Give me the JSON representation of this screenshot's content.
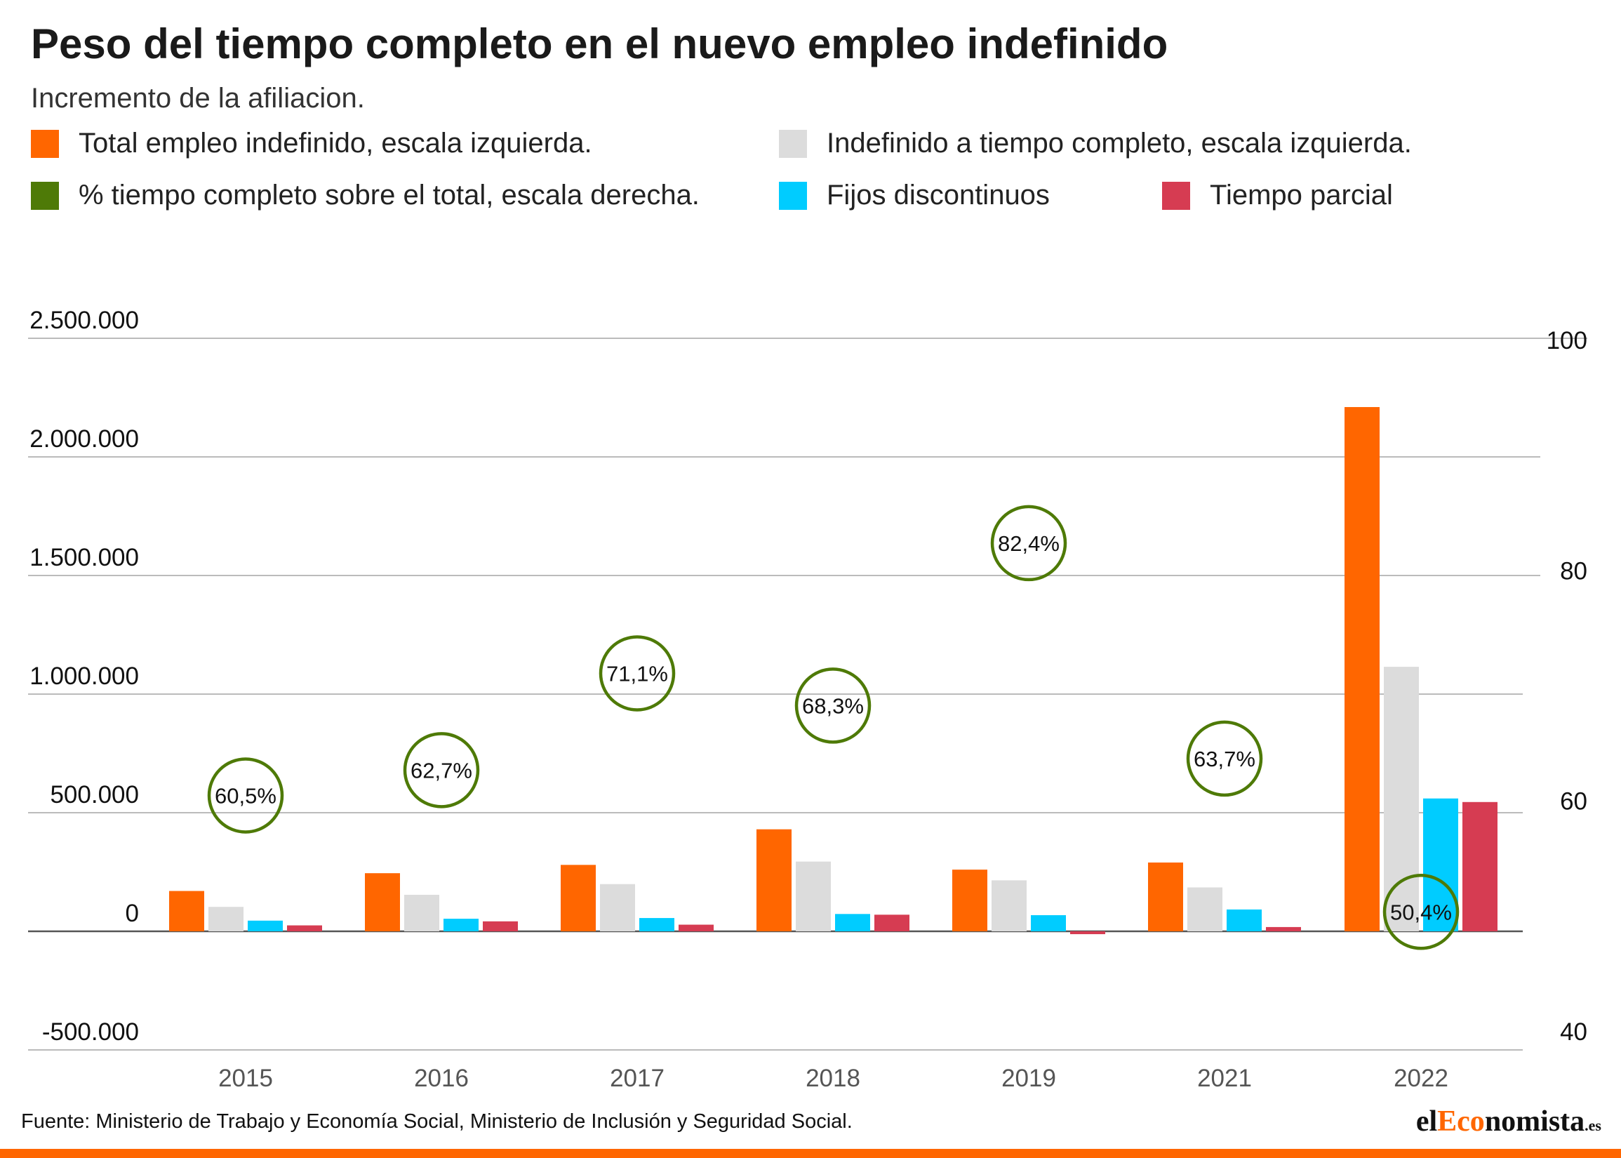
{
  "chart_data": {
    "type": "bar",
    "title": "Peso del tiempo completo en el nuevo empleo indefinido",
    "subtitle": "Incremento de la afiliacion.",
    "categories": [
      "2015",
      "2016",
      "2017",
      "2018",
      "2019",
      "2021",
      "2022"
    ],
    "series": [
      {
        "name": "Total empleo indefinido, escala izquierda.",
        "axis": "left",
        "color": "#ff6600",
        "values": [
          170000,
          245000,
          280000,
          430000,
          260000,
          290000,
          2210000
        ]
      },
      {
        "name": "Indefinido a tiempo completo, escala izquierda.",
        "axis": "left",
        "color": "#dcdcdc",
        "values": [
          103000,
          154000,
          199000,
          294000,
          215000,
          185000,
          1115000
        ]
      },
      {
        "name": "Fijos discontinuos",
        "axis": "left",
        "color": "#00ccff",
        "values": [
          45000,
          53000,
          56000,
          73000,
          68000,
          92000,
          560000
        ]
      },
      {
        "name": "Tiempo parcial",
        "axis": "left",
        "color": "#d63c52",
        "values": [
          25000,
          42000,
          28000,
          70000,
          -12000,
          18000,
          545000
        ]
      },
      {
        "name": "% tiempo completo sobre el total, escala derecha.",
        "axis": "right",
        "color": "#4e7a07",
        "values": [
          60.5,
          62.7,
          71.1,
          68.3,
          82.4,
          63.7,
          50.4
        ],
        "labels": [
          "60,5%",
          "62,7%",
          "71,1%",
          "68,3%",
          "82,4%",
          "63,7%",
          "50,4%"
        ]
      }
    ],
    "y_left": {
      "ylim": [
        -500000,
        2500000
      ],
      "ticks": [
        -500000,
        0,
        500000,
        1000000,
        1500000,
        2000000,
        2500000
      ],
      "tick_labels": [
        "-500.000",
        "0",
        "500.000",
        "1.000.000",
        "1.500.000",
        "2.000.000",
        "2.500.000"
      ]
    },
    "y_right": {
      "ylim": [
        40,
        100
      ],
      "ticks": [
        40,
        60,
        80,
        100
      ],
      "tick_labels": [
        "40",
        "60",
        "80",
        "100"
      ]
    },
    "grid": true,
    "legend_position": "top"
  },
  "footer": {
    "source": "Fuente: Ministerio de Trabajo y Economía Social, Ministerio de Inclusión y Seguridad Social.",
    "brand_prefix": "el",
    "brand_accent": "Eco",
    "brand_suffix": "nomista",
    "brand_tld": ".es"
  }
}
